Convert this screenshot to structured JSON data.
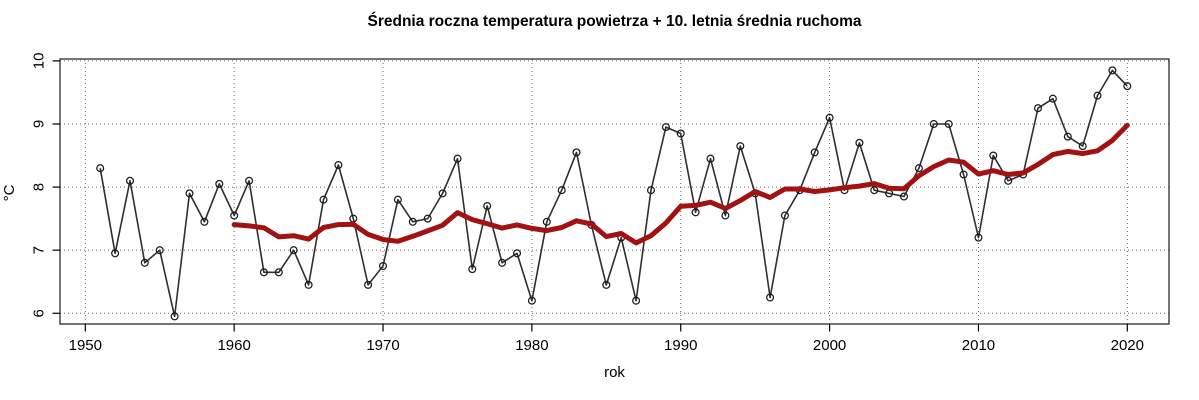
{
  "chart_data": {
    "type": "line",
    "title": "Średnia roczna temperatura powietrza + 10. letnia średnia ruchoma",
    "xlabel": "rok",
    "ylabel": "°C",
    "x_ticks": [
      1950,
      1960,
      1970,
      1980,
      1990,
      2000,
      2010,
      2020
    ],
    "y_ticks": [
      6,
      7,
      8,
      9,
      10
    ],
    "xlim": [
      1948.3,
      2022.8
    ],
    "ylim": [
      5.83,
      10.03
    ],
    "grid": true,
    "grid_style": "dotted",
    "legend": "none",
    "year_start": 1951,
    "year_end": 2020,
    "series": [
      {
        "name": "średnia roczna temperatura",
        "style": "line-with-open-circle-markers",
        "color": "#2f2f2f",
        "marker_color": "#1c1c1c",
        "line_width": 1.6,
        "values": [
          8.3,
          6.95,
          8.1,
          6.8,
          7.0,
          5.95,
          7.9,
          7.45,
          8.05,
          7.55,
          8.1,
          6.65,
          6.65,
          7.0,
          6.45,
          7.8,
          8.35,
          7.5,
          6.45,
          6.75,
          7.8,
          7.45,
          7.5,
          7.9,
          8.45,
          6.7,
          7.7,
          6.8,
          6.95,
          6.2,
          7.45,
          7.95,
          8.55,
          7.4,
          6.45,
          7.2,
          6.2,
          7.95,
          8.95,
          8.85,
          7.6,
          8.45,
          7.55,
          8.65,
          7.9,
          6.25,
          7.55,
          7.95,
          8.55,
          9.1,
          7.95,
          8.7,
          7.95,
          7.9,
          7.85,
          8.3,
          9.0,
          9.0,
          8.2,
          7.2,
          8.5,
          8.1,
          8.2,
          9.25,
          9.4,
          8.8,
          8.65,
          9.45,
          9.85,
          9.6
        ]
      },
      {
        "name": "10. letnia średnia ruchoma",
        "style": "thick-line",
        "color": "#a31212",
        "line_width": 5,
        "derived": "trailing_mean_10",
        "first_year_shown": 1960
      }
    ],
    "colors": {
      "background": "#ffffff",
      "box": "#3c3c3c",
      "grid": "#666666",
      "text": "#000000"
    }
  }
}
